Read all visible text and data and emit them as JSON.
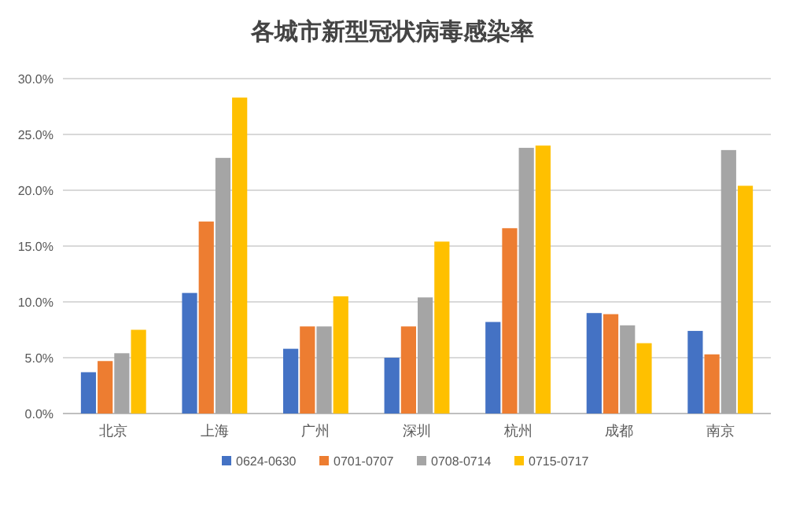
{
  "chart_data": {
    "type": "bar",
    "title": "各城市新型冠状病毒感染率",
    "categories": [
      "北京",
      "上海",
      "广州",
      "深圳",
      "杭州",
      "成都",
      "南京"
    ],
    "series": [
      {
        "name": "0624-0630",
        "color": "#4472c4",
        "values": [
          3.7,
          10.8,
          5.8,
          5.0,
          8.2,
          9.0,
          7.4
        ]
      },
      {
        "name": "0701-0707",
        "color": "#ed7d31",
        "values": [
          4.7,
          17.2,
          7.8,
          7.8,
          16.6,
          8.9,
          5.3
        ]
      },
      {
        "name": "0708-0714",
        "color": "#a5a5a5",
        "values": [
          5.4,
          22.9,
          7.8,
          10.4,
          23.8,
          7.9,
          23.6
        ]
      },
      {
        "name": "0715-0717",
        "color": "#ffc000",
        "values": [
          7.5,
          28.3,
          10.5,
          15.4,
          24.0,
          6.3,
          20.4
        ]
      }
    ],
    "ylim": [
      0,
      30
    ],
    "yticks": [
      {
        "value": 0,
        "label": "0.0%"
      },
      {
        "value": 5,
        "label": "5.0%"
      },
      {
        "value": 10,
        "label": "10.0%"
      },
      {
        "value": 15,
        "label": "15.0%"
      },
      {
        "value": 20,
        "label": "20.0%"
      },
      {
        "value": 25,
        "label": "25.0%"
      },
      {
        "value": 30,
        "label": "30.0%"
      }
    ],
    "grid": "y",
    "legend": "bottom"
  }
}
